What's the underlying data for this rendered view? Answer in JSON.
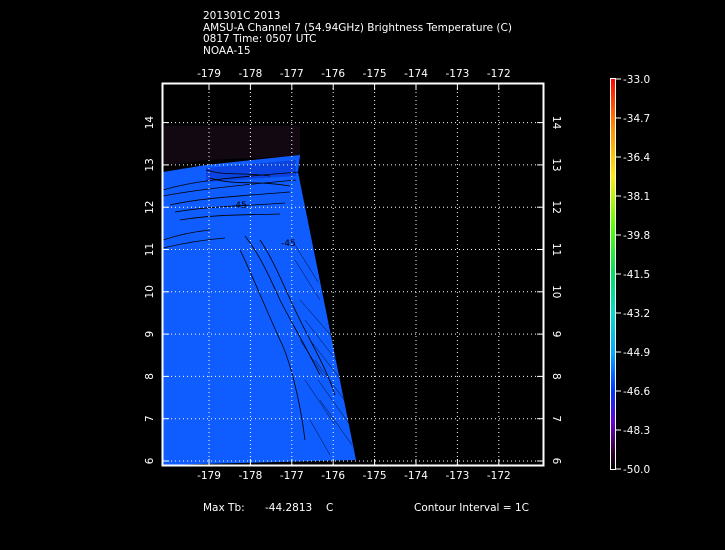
{
  "header": {
    "line1": "201301C 2013",
    "line2": "AMSU-A Channel 7 (54.94GHz) Brightness Temperature (C)",
    "line3": "0817 Time: 0507 UTC",
    "line4": "NOAA-15"
  },
  "map": {
    "lon_ticks": [
      "-179",
      "-178",
      "-177",
      "-176",
      "-175",
      "-174",
      "-173",
      "-172"
    ],
    "lat_ticks": [
      "6",
      "7",
      "8",
      "9",
      "10",
      "11",
      "12",
      "13",
      "14"
    ],
    "contour_labels": [
      "-45",
      "-45"
    ]
  },
  "colorbar": {
    "labels": [
      "-33.0",
      "-34.7",
      "-36.4",
      "-38.1",
      "-39.8",
      "-41.5",
      "-43.2",
      "-44.9",
      "-46.6",
      "-48.3",
      "-50.0"
    ]
  },
  "footer": {
    "max_label": "Max Tb:",
    "max_value": "-44.2813",
    "max_unit": "C",
    "contour_interval": "Contour Interval = 1C"
  },
  "colors": {
    "background": "#000000",
    "swath_blue": "#0f5cff",
    "swath_blue_dark": "#0a3fd8",
    "frame": "#ffffff",
    "grid": "#ffffff"
  }
}
